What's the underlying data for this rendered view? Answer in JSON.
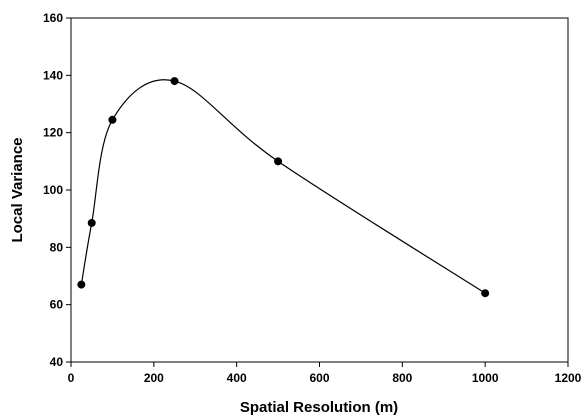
{
  "chart_data": {
    "type": "line",
    "title": "",
    "xlabel": "Spatial Resolution (m)",
    "ylabel": "Local Variance",
    "xlim": [
      0,
      1200
    ],
    "ylim": [
      40,
      160
    ],
    "xticks": [
      0,
      200,
      400,
      600,
      800,
      1000,
      1200
    ],
    "yticks": [
      40,
      60,
      80,
      100,
      120,
      140,
      160
    ],
    "grid": false,
    "smooth": true,
    "marker": "filled-circle",
    "line_color": "#000000",
    "marker_color": "#000000",
    "series": [
      {
        "x": [
          25,
          50,
          100,
          250,
          500,
          1000
        ],
        "y": [
          67,
          88.5,
          124.5,
          138,
          110,
          64
        ]
      }
    ]
  }
}
